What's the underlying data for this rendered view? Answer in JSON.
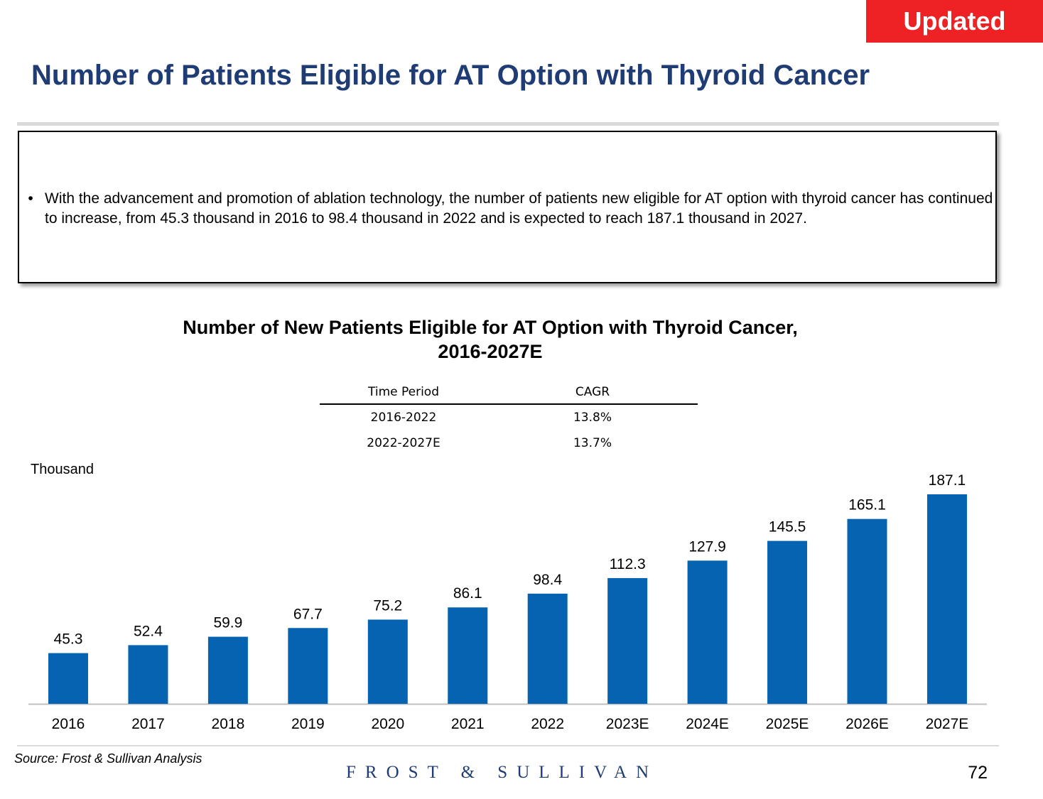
{
  "badge": "Updated",
  "title": "Number of Patients Eligible for AT Option with Thyroid Cancer",
  "summary": {
    "bullet": "•",
    "text": "With the advancement and promotion of ablation technology, the number of patients new eligible for AT option with thyroid cancer has continued to increase, from 45.3 thousand in 2016 to 98.4 thousand in 2022 and is expected to reach 187.1 thousand in 2027."
  },
  "chart_data": {
    "type": "bar",
    "title_line1": "Number of New Patients Eligible for AT Option with Thyroid Cancer,",
    "title_line2": "2016-2027E",
    "ylabel": "Thousand",
    "categories": [
      "2016",
      "2017",
      "2018",
      "2019",
      "2020",
      "2021",
      "2022",
      "2023E",
      "2024E",
      "2025E",
      "2026E",
      "2027E"
    ],
    "values": [
      45.3,
      52.4,
      59.9,
      67.7,
      75.2,
      86.1,
      98.4,
      112.3,
      127.9,
      145.5,
      165.1,
      187.1
    ],
    "value_labels": [
      "45.3",
      "52.4",
      "59.9",
      "67.7",
      "75.2",
      "86.1",
      "98.4",
      "112.3",
      "127.9",
      "145.5",
      "165.1",
      "187.1"
    ],
    "ylim": [
      0,
      200
    ],
    "bar_color": "#0563b1",
    "cagr_table": {
      "headers": [
        "Time Period",
        "CAGR"
      ],
      "rows": [
        [
          "2016-2022",
          "13.8%"
        ],
        [
          "2022-2027E",
          "13.7%"
        ]
      ]
    }
  },
  "footer": {
    "source": "Source: Frost & Sullivan Analysis",
    "logo": "FROST & SULLIVAN",
    "page": "72"
  },
  "colors": {
    "title": "#1f3c74",
    "badge": "#ee2124"
  }
}
